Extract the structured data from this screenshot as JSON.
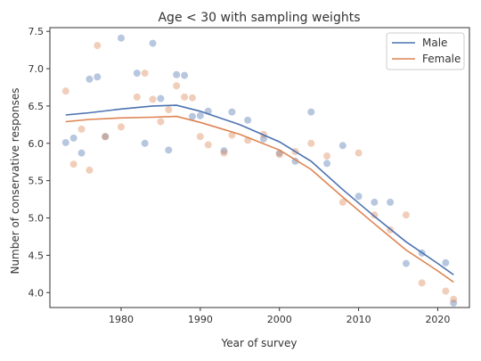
{
  "chart_data": {
    "type": "scatter",
    "title": "Age < 30 with sampling weights",
    "xlabel": "Year of survey",
    "ylabel": "Number of conservative responses",
    "xlim": [
      1971,
      2024
    ],
    "ylim": [
      3.8,
      7.55
    ],
    "xticks": [
      1980,
      1990,
      2000,
      2010,
      2020
    ],
    "yticks": [
      4.0,
      4.5,
      5.0,
      5.5,
      6.0,
      6.5,
      7.0,
      7.5
    ],
    "grid": false,
    "legend_position": "top-right",
    "series": [
      {
        "name": "Male",
        "color": "#4C72B0",
        "points": [
          [
            1973,
            6.01
          ],
          [
            1974,
            6.07
          ],
          [
            1975,
            5.87
          ],
          [
            1976,
            6.86
          ],
          [
            1977,
            6.89
          ],
          [
            1978,
            6.09
          ],
          [
            1980,
            7.41
          ],
          [
            1982,
            6.94
          ],
          [
            1983,
            6.0
          ],
          [
            1984,
            7.34
          ],
          [
            1985,
            6.6
          ],
          [
            1986,
            5.91
          ],
          [
            1987,
            6.92
          ],
          [
            1988,
            6.91
          ],
          [
            1989,
            6.36
          ],
          [
            1990,
            6.37
          ],
          [
            1991,
            6.43
          ],
          [
            1993,
            5.9
          ],
          [
            1994,
            6.42
          ],
          [
            1996,
            6.31
          ],
          [
            1998,
            6.06
          ],
          [
            2000,
            5.87
          ],
          [
            2002,
            5.76
          ],
          [
            2004,
            6.42
          ],
          [
            2006,
            5.73
          ],
          [
            2008,
            5.97
          ],
          [
            2010,
            5.29
          ],
          [
            2012,
            5.21
          ],
          [
            2014,
            5.21
          ],
          [
            2016,
            4.39
          ],
          [
            2018,
            4.53
          ],
          [
            2021,
            4.4
          ],
          [
            2022,
            3.86
          ]
        ],
        "trend": [
          [
            1973,
            6.38
          ],
          [
            1976,
            6.41
          ],
          [
            1980,
            6.46
          ],
          [
            1984,
            6.5
          ],
          [
            1987,
            6.51
          ],
          [
            1990,
            6.43
          ],
          [
            1995,
            6.25
          ],
          [
            2000,
            6.02
          ],
          [
            2004,
            5.76
          ],
          [
            2008,
            5.38
          ],
          [
            2012,
            5.02
          ],
          [
            2016,
            4.68
          ],
          [
            2020,
            4.39
          ],
          [
            2022,
            4.24
          ]
        ]
      },
      {
        "name": "Female",
        "color": "#DD8452",
        "points": [
          [
            1973,
            6.7
          ],
          [
            1974,
            5.72
          ],
          [
            1975,
            6.19
          ],
          [
            1976,
            5.64
          ],
          [
            1977,
            7.31
          ],
          [
            1978,
            6.09
          ],
          [
            1980,
            6.22
          ],
          [
            1982,
            6.62
          ],
          [
            1983,
            6.94
          ],
          [
            1984,
            6.59
          ],
          [
            1985,
            6.29
          ],
          [
            1986,
            6.45
          ],
          [
            1987,
            6.77
          ],
          [
            1988,
            6.62
          ],
          [
            1989,
            6.61
          ],
          [
            1990,
            6.09
          ],
          [
            1991,
            5.98
          ],
          [
            1993,
            5.87
          ],
          [
            1994,
            6.11
          ],
          [
            1996,
            6.04
          ],
          [
            1998,
            6.12
          ],
          [
            2000,
            5.85
          ],
          [
            2002,
            5.89
          ],
          [
            2004,
            6.0
          ],
          [
            2006,
            5.83
          ],
          [
            2008,
            5.21
          ],
          [
            2010,
            5.87
          ],
          [
            2012,
            5.04
          ],
          [
            2014,
            4.84
          ],
          [
            2016,
            5.04
          ],
          [
            2018,
            4.13
          ],
          [
            2021,
            4.02
          ],
          [
            2022,
            3.91
          ]
        ],
        "trend": [
          [
            1973,
            6.29
          ],
          [
            1976,
            6.32
          ],
          [
            1980,
            6.34
          ],
          [
            1984,
            6.35
          ],
          [
            1987,
            6.36
          ],
          [
            1990,
            6.28
          ],
          [
            1995,
            6.12
          ],
          [
            2000,
            5.91
          ],
          [
            2004,
            5.65
          ],
          [
            2008,
            5.28
          ],
          [
            2012,
            4.92
          ],
          [
            2016,
            4.57
          ],
          [
            2020,
            4.29
          ],
          [
            2022,
            4.14
          ]
        ]
      }
    ]
  }
}
